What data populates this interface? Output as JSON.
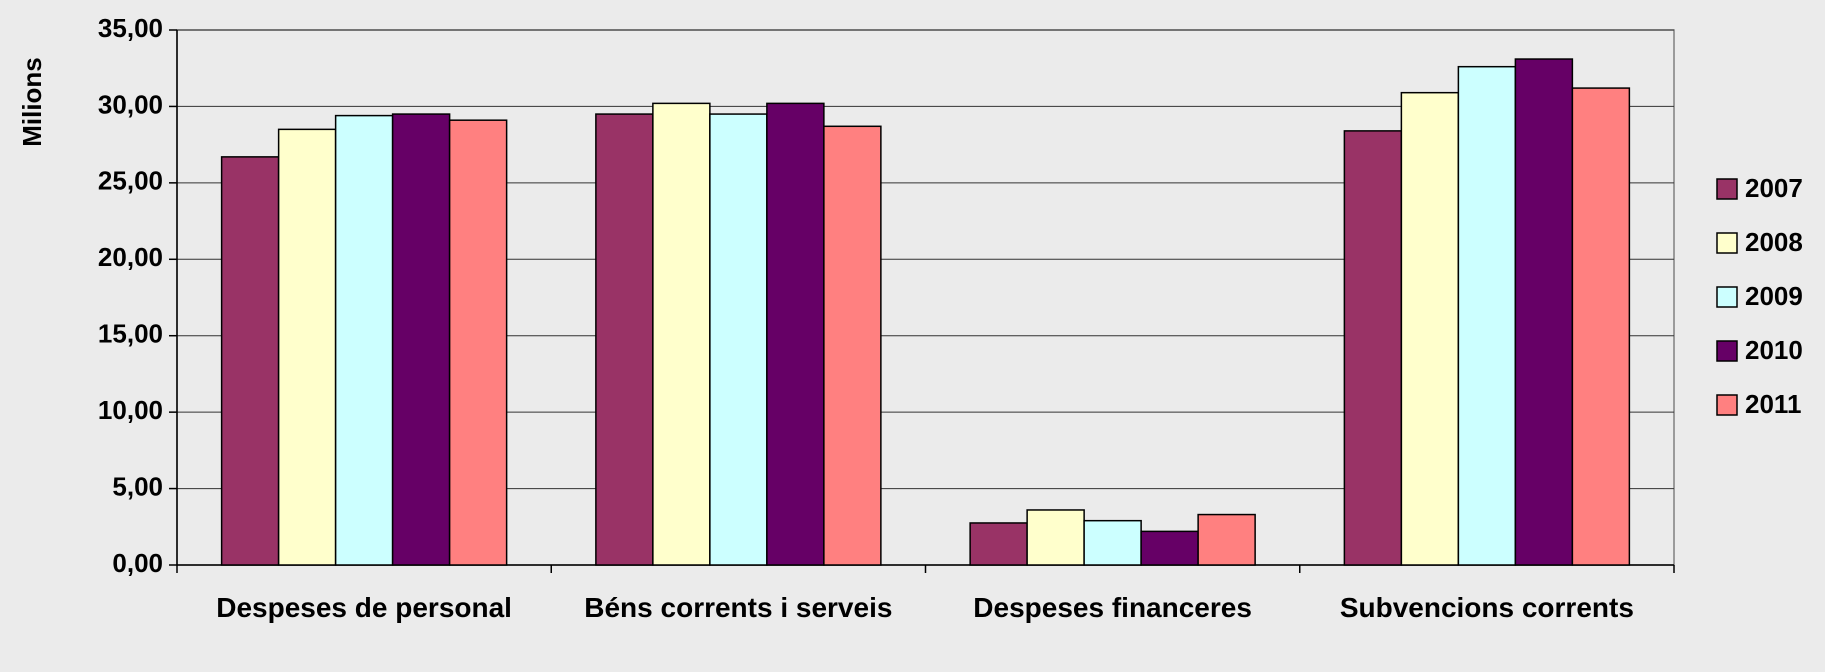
{
  "chart_data": {
    "type": "bar",
    "y_label": "Milions",
    "categories": [
      "Despeses de personal",
      "Béns corrents i serveis",
      "Despeses financeres",
      "Subvencions corrents"
    ],
    "series": [
      {
        "name": "2007",
        "color": "#993366",
        "values": [
          26.7,
          29.5,
          2.75,
          28.4
        ]
      },
      {
        "name": "2008",
        "color": "#ffffcc",
        "values": [
          28.5,
          30.2,
          3.6,
          30.9
        ]
      },
      {
        "name": "2009",
        "color": "#ccffff",
        "values": [
          29.4,
          29.5,
          2.9,
          32.6
        ]
      },
      {
        "name": "2010",
        "color": "#660066",
        "values": [
          29.5,
          30.2,
          2.2,
          33.1
        ]
      },
      {
        "name": "2011",
        "color": "#ff8080",
        "values": [
          29.1,
          28.7,
          3.3,
          31.2
        ]
      }
    ],
    "ylim": [
      0,
      35
    ],
    "yticks": [
      {
        "value": 0,
        "label": "0,00"
      },
      {
        "value": 5,
        "label": "5,00"
      },
      {
        "value": 10,
        "label": "10,00"
      },
      {
        "value": 15,
        "label": "15,00"
      },
      {
        "value": 20,
        "label": "20,00"
      },
      {
        "value": 25,
        "label": "25,00"
      },
      {
        "value": 30,
        "label": "30,00"
      },
      {
        "value": 35,
        "label": "35,00"
      }
    ],
    "grid": true,
    "legend": "right"
  }
}
